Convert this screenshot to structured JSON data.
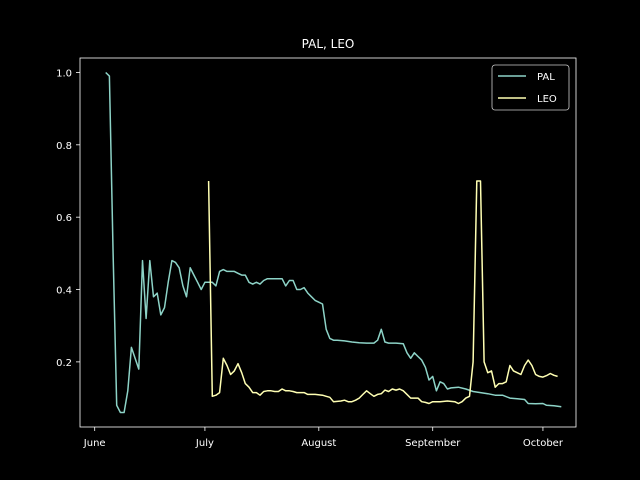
{
  "chart_data": {
    "type": "line",
    "title": "PAL, LEO",
    "xlabel": "",
    "ylabel": "",
    "xlim": [
      "2023-05-28",
      "2023-10-10"
    ],
    "ylim": [
      0.02,
      1.04
    ],
    "x_ticks": [
      {
        "date": "2023-06-01",
        "label": "June"
      },
      {
        "date": "2023-07-01",
        "label": "July"
      },
      {
        "date": "2023-08-01",
        "label": "August"
      },
      {
        "date": "2023-09-01",
        "label": "September"
      },
      {
        "date": "2023-10-01",
        "label": "October"
      }
    ],
    "y_ticks": [
      {
        "value": 0.2,
        "label": "0.2"
      },
      {
        "value": 0.4,
        "label": "0.4"
      },
      {
        "value": 0.6,
        "label": "0.6"
      },
      {
        "value": 0.8,
        "label": "0.8"
      },
      {
        "value": 1.0,
        "label": "1.0"
      }
    ],
    "grid": false,
    "legend_position": "top-right",
    "background": "#000000",
    "foreground": "#ffffff",
    "series": [
      {
        "name": "PAL",
        "color": "#8dd3c7",
        "points": [
          [
            "2023-06-04",
            1.0
          ],
          [
            "2023-06-05",
            0.99
          ],
          [
            "2023-06-06",
            0.5
          ],
          [
            "2023-06-07",
            0.08
          ],
          [
            "2023-06-08",
            0.06
          ],
          [
            "2023-06-09",
            0.06
          ],
          [
            "2023-06-10",
            0.12
          ],
          [
            "2023-06-11",
            0.24
          ],
          [
            "2023-06-12",
            0.21
          ],
          [
            "2023-06-13",
            0.18
          ],
          [
            "2023-06-14",
            0.48
          ],
          [
            "2023-06-15",
            0.32
          ],
          [
            "2023-06-16",
            0.48
          ],
          [
            "2023-06-17",
            0.38
          ],
          [
            "2023-06-18",
            0.39
          ],
          [
            "2023-06-19",
            0.33
          ],
          [
            "2023-06-20",
            0.35
          ],
          [
            "2023-06-21",
            0.42
          ],
          [
            "2023-06-22",
            0.48
          ],
          [
            "2023-06-23",
            0.475
          ],
          [
            "2023-06-24",
            0.46
          ],
          [
            "2023-06-25",
            0.41
          ],
          [
            "2023-06-26",
            0.38
          ],
          [
            "2023-06-27",
            0.46
          ],
          [
            "2023-06-28",
            0.44
          ],
          [
            "2023-06-29",
            0.42
          ],
          [
            "2023-06-30",
            0.4
          ],
          [
            "2023-07-01",
            0.42
          ],
          [
            "2023-07-02",
            0.42
          ],
          [
            "2023-07-03",
            0.42
          ],
          [
            "2023-07-04",
            0.41
          ],
          [
            "2023-07-05",
            0.45
          ],
          [
            "2023-07-06",
            0.455
          ],
          [
            "2023-07-07",
            0.45
          ],
          [
            "2023-07-08",
            0.45
          ],
          [
            "2023-07-09",
            0.45
          ],
          [
            "2023-07-10",
            0.445
          ],
          [
            "2023-07-11",
            0.44
          ],
          [
            "2023-07-12",
            0.44
          ],
          [
            "2023-07-13",
            0.42
          ],
          [
            "2023-07-14",
            0.415
          ],
          [
            "2023-07-15",
            0.42
          ],
          [
            "2023-07-16",
            0.415
          ],
          [
            "2023-07-17",
            0.425
          ],
          [
            "2023-07-18",
            0.43
          ],
          [
            "2023-07-19",
            0.43
          ],
          [
            "2023-07-20",
            0.43
          ],
          [
            "2023-07-21",
            0.43
          ],
          [
            "2023-07-22",
            0.43
          ],
          [
            "2023-07-23",
            0.41
          ],
          [
            "2023-07-24",
            0.425
          ],
          [
            "2023-07-25",
            0.425
          ],
          [
            "2023-07-26",
            0.4
          ],
          [
            "2023-07-27",
            0.4
          ],
          [
            "2023-07-28",
            0.405
          ],
          [
            "2023-07-29",
            0.39
          ],
          [
            "2023-07-30",
            0.38
          ],
          [
            "2023-07-31",
            0.37
          ],
          [
            "2023-08-01",
            0.365
          ],
          [
            "2023-08-02",
            0.36
          ],
          [
            "2023-08-03",
            0.29
          ],
          [
            "2023-08-04",
            0.265
          ],
          [
            "2023-08-05",
            0.26
          ],
          [
            "2023-08-06",
            0.26
          ],
          [
            "2023-08-08",
            0.258
          ],
          [
            "2023-08-10",
            0.255
          ],
          [
            "2023-08-12",
            0.253
          ],
          [
            "2023-08-14",
            0.252
          ],
          [
            "2023-08-16",
            0.252
          ],
          [
            "2023-08-17",
            0.26
          ],
          [
            "2023-08-18",
            0.29
          ],
          [
            "2023-08-19",
            0.255
          ],
          [
            "2023-08-20",
            0.252
          ],
          [
            "2023-08-22",
            0.252
          ],
          [
            "2023-08-24",
            0.25
          ],
          [
            "2023-08-25",
            0.225
          ],
          [
            "2023-08-26",
            0.21
          ],
          [
            "2023-08-27",
            0.225
          ],
          [
            "2023-08-28",
            0.215
          ],
          [
            "2023-08-29",
            0.205
          ],
          [
            "2023-08-30",
            0.185
          ],
          [
            "2023-08-31",
            0.15
          ],
          [
            "2023-09-01",
            0.16
          ],
          [
            "2023-09-02",
            0.12
          ],
          [
            "2023-09-03",
            0.145
          ],
          [
            "2023-09-04",
            0.14
          ],
          [
            "2023-09-05",
            0.125
          ],
          [
            "2023-09-06",
            0.128
          ],
          [
            "2023-09-08",
            0.13
          ],
          [
            "2023-09-10",
            0.125
          ],
          [
            "2023-09-12",
            0.118
          ],
          [
            "2023-09-14",
            0.115
          ],
          [
            "2023-09-16",
            0.112
          ],
          [
            "2023-09-18",
            0.108
          ],
          [
            "2023-09-20",
            0.108
          ],
          [
            "2023-09-22",
            0.1
          ],
          [
            "2023-09-24",
            0.098
          ],
          [
            "2023-09-26",
            0.096
          ],
          [
            "2023-09-27",
            0.085
          ],
          [
            "2023-09-29",
            0.084
          ],
          [
            "2023-10-01",
            0.085
          ],
          [
            "2023-10-02",
            0.08
          ],
          [
            "2023-10-04",
            0.079
          ],
          [
            "2023-10-06",
            0.076
          ]
        ]
      },
      {
        "name": "LEO",
        "color": "#ffffb3",
        "points": [
          [
            "2023-07-02",
            0.7
          ],
          [
            "2023-07-03",
            0.105
          ],
          [
            "2023-07-04",
            0.108
          ],
          [
            "2023-07-05",
            0.115
          ],
          [
            "2023-07-06",
            0.21
          ],
          [
            "2023-07-07",
            0.19
          ],
          [
            "2023-07-08",
            0.165
          ],
          [
            "2023-07-09",
            0.175
          ],
          [
            "2023-07-10",
            0.195
          ],
          [
            "2023-07-11",
            0.17
          ],
          [
            "2023-07-12",
            0.14
          ],
          [
            "2023-07-13",
            0.13
          ],
          [
            "2023-07-14",
            0.115
          ],
          [
            "2023-07-15",
            0.115
          ],
          [
            "2023-07-16",
            0.108
          ],
          [
            "2023-07-17",
            0.118
          ],
          [
            "2023-07-18",
            0.12
          ],
          [
            "2023-07-19",
            0.12
          ],
          [
            "2023-07-20",
            0.118
          ],
          [
            "2023-07-21",
            0.118
          ],
          [
            "2023-07-22",
            0.125
          ],
          [
            "2023-07-23",
            0.12
          ],
          [
            "2023-07-24",
            0.12
          ],
          [
            "2023-07-25",
            0.118
          ],
          [
            "2023-07-26",
            0.115
          ],
          [
            "2023-07-28",
            0.115
          ],
          [
            "2023-07-29",
            0.11
          ],
          [
            "2023-07-31",
            0.11
          ],
          [
            "2023-08-02",
            0.108
          ],
          [
            "2023-08-03",
            0.105
          ],
          [
            "2023-08-04",
            0.102
          ],
          [
            "2023-08-05",
            0.09
          ],
          [
            "2023-08-07",
            0.092
          ],
          [
            "2023-08-08",
            0.094
          ],
          [
            "2023-08-09",
            0.09
          ],
          [
            "2023-08-10",
            0.09
          ],
          [
            "2023-08-11",
            0.094
          ],
          [
            "2023-08-12",
            0.1
          ],
          [
            "2023-08-13",
            0.11
          ],
          [
            "2023-08-14",
            0.12
          ],
          [
            "2023-08-15",
            0.112
          ],
          [
            "2023-08-16",
            0.105
          ],
          [
            "2023-08-17",
            0.11
          ],
          [
            "2023-08-18",
            0.112
          ],
          [
            "2023-08-19",
            0.122
          ],
          [
            "2023-08-20",
            0.118
          ],
          [
            "2023-08-21",
            0.125
          ],
          [
            "2023-08-22",
            0.122
          ],
          [
            "2023-08-23",
            0.125
          ],
          [
            "2023-08-24",
            0.12
          ],
          [
            "2023-08-25",
            0.11
          ],
          [
            "2023-08-26",
            0.1
          ],
          [
            "2023-08-27",
            0.1
          ],
          [
            "2023-08-28",
            0.1
          ],
          [
            "2023-08-29",
            0.09
          ],
          [
            "2023-08-30",
            0.088
          ],
          [
            "2023-08-31",
            0.085
          ],
          [
            "2023-09-01",
            0.09
          ],
          [
            "2023-09-03",
            0.09
          ],
          [
            "2023-09-05",
            0.092
          ],
          [
            "2023-09-07",
            0.09
          ],
          [
            "2023-09-08",
            0.085
          ],
          [
            "2023-09-09",
            0.09
          ],
          [
            "2023-09-10",
            0.1
          ],
          [
            "2023-09-11",
            0.105
          ],
          [
            "2023-09-12",
            0.2
          ],
          [
            "2023-09-13",
            0.7
          ],
          [
            "2023-09-14",
            0.7
          ],
          [
            "2023-09-15",
            0.2
          ],
          [
            "2023-09-16",
            0.17
          ],
          [
            "2023-09-17",
            0.175
          ],
          [
            "2023-09-18",
            0.13
          ],
          [
            "2023-09-19",
            0.14
          ],
          [
            "2023-09-20",
            0.14
          ],
          [
            "2023-09-21",
            0.145
          ],
          [
            "2023-09-22",
            0.19
          ],
          [
            "2023-09-23",
            0.175
          ],
          [
            "2023-09-24",
            0.17
          ],
          [
            "2023-09-25",
            0.165
          ],
          [
            "2023-09-26",
            0.19
          ],
          [
            "2023-09-27",
            0.205
          ],
          [
            "2023-09-28",
            0.19
          ],
          [
            "2023-09-29",
            0.165
          ],
          [
            "2023-09-30",
            0.16
          ],
          [
            "2023-10-01",
            0.158
          ],
          [
            "2023-10-02",
            0.162
          ],
          [
            "2023-10-03",
            0.168
          ],
          [
            "2023-10-04",
            0.163
          ],
          [
            "2023-10-05",
            0.16
          ]
        ]
      }
    ]
  }
}
